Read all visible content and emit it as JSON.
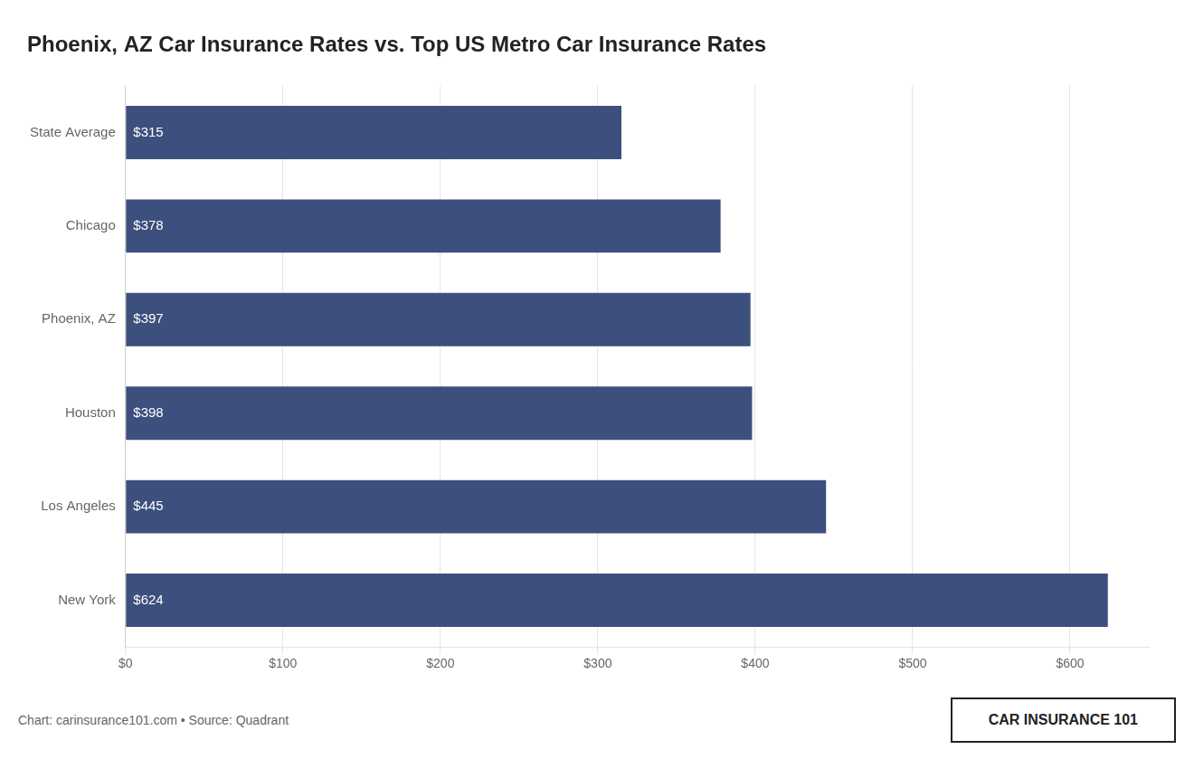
{
  "chart_data": {
    "type": "bar",
    "orientation": "horizontal",
    "title": "Phoenix, AZ Car Insurance Rates vs. Top US Metro Car Insurance Rates",
    "categories": [
      "State Average",
      "Chicago",
      "Phoenix, AZ",
      "Houston",
      "Los Angeles",
      "New York"
    ],
    "values": [
      315,
      378,
      397,
      398,
      445,
      624
    ],
    "value_labels": [
      "$315",
      "$378",
      "$397",
      "$398",
      "$445",
      "$624"
    ],
    "data_labels": true,
    "color": "#3d4f7c",
    "xlim": [
      0,
      650
    ],
    "xticks": [
      {
        "value": 0,
        "label": "$0"
      },
      {
        "value": 100,
        "label": "$100"
      },
      {
        "value": 200,
        "label": "$200"
      },
      {
        "value": 300,
        "label": "$300"
      },
      {
        "value": 400,
        "label": "$400"
      },
      {
        "value": 500,
        "label": "$500"
      },
      {
        "value": 600,
        "label": "$600"
      }
    ],
    "grid": true,
    "annotations": [
      "Chart: carinsurance101.com • Source: Quadrant",
      "CAR INSURANCE 101"
    ]
  }
}
